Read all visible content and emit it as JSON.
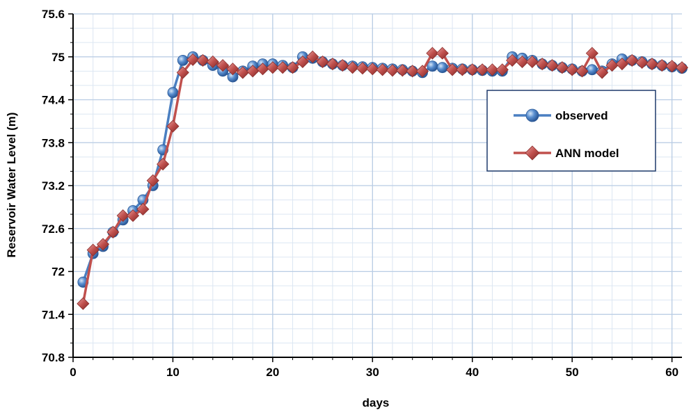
{
  "chart_data": {
    "type": "line",
    "title": "",
    "xlabel": "days",
    "ylabel": "Reservoir Water Level (m)",
    "xlim": [
      0,
      61
    ],
    "ylim": [
      70.8,
      75.6
    ],
    "x_ticks": [
      0,
      10,
      20,
      30,
      40,
      50,
      60
    ],
    "y_ticks": [
      70.8,
      71.4,
      72,
      72.6,
      73.2,
      73.8,
      74.4,
      75,
      75.6
    ],
    "y_tick_labels": [
      "70.8",
      "71.4",
      "72",
      "72.6",
      "73.2",
      "73.8",
      "74.4",
      "75",
      "75.6"
    ],
    "grid": true,
    "legend_position": "right",
    "x": [
      1,
      2,
      3,
      4,
      5,
      6,
      7,
      8,
      9,
      10,
      11,
      12,
      13,
      14,
      15,
      16,
      17,
      18,
      19,
      20,
      21,
      22,
      23,
      24,
      25,
      26,
      27,
      28,
      29,
      30,
      31,
      32,
      33,
      34,
      35,
      36,
      37,
      38,
      39,
      40,
      41,
      42,
      43,
      44,
      45,
      46,
      47,
      48,
      49,
      50,
      51,
      52,
      53,
      54,
      55,
      56,
      57,
      58,
      59,
      60,
      61
    ],
    "series": [
      {
        "name": "observed",
        "color": "#4a7fc1",
        "marker": "circle",
        "values": [
          71.85,
          72.25,
          72.35,
          72.55,
          72.72,
          72.85,
          73.0,
          73.2,
          73.7,
          74.5,
          74.95,
          75.0,
          74.95,
          74.88,
          74.8,
          74.72,
          74.8,
          74.87,
          74.9,
          74.9,
          74.88,
          74.85,
          75.0,
          74.98,
          74.93,
          74.9,
          74.88,
          74.87,
          74.86,
          74.85,
          74.84,
          74.83,
          74.82,
          74.8,
          74.78,
          74.87,
          74.85,
          74.84,
          74.83,
          74.82,
          74.81,
          74.8,
          74.8,
          75.0,
          74.98,
          74.95,
          74.9,
          74.88,
          74.85,
          74.83,
          74.8,
          74.82,
          74.8,
          74.9,
          74.97,
          74.95,
          74.93,
          74.9,
          74.88,
          74.86,
          74.84
        ]
      },
      {
        "name": "ANN model",
        "color": "#c0504d",
        "marker": "diamond",
        "values": [
          71.55,
          72.3,
          72.38,
          72.55,
          72.78,
          72.78,
          72.87,
          73.27,
          73.5,
          74.03,
          74.78,
          74.96,
          74.95,
          74.93,
          74.88,
          74.83,
          74.78,
          74.8,
          74.83,
          74.85,
          74.85,
          74.85,
          74.93,
          75.0,
          74.93,
          74.9,
          74.88,
          74.85,
          74.84,
          74.83,
          74.82,
          74.81,
          74.81,
          74.8,
          74.8,
          75.05,
          75.05,
          74.82,
          74.82,
          74.82,
          74.82,
          74.82,
          74.82,
          74.95,
          74.93,
          74.93,
          74.9,
          74.88,
          74.85,
          74.82,
          74.8,
          75.05,
          74.78,
          74.88,
          74.9,
          74.95,
          74.92,
          74.9,
          74.88,
          74.87,
          74.85
        ]
      }
    ]
  }
}
